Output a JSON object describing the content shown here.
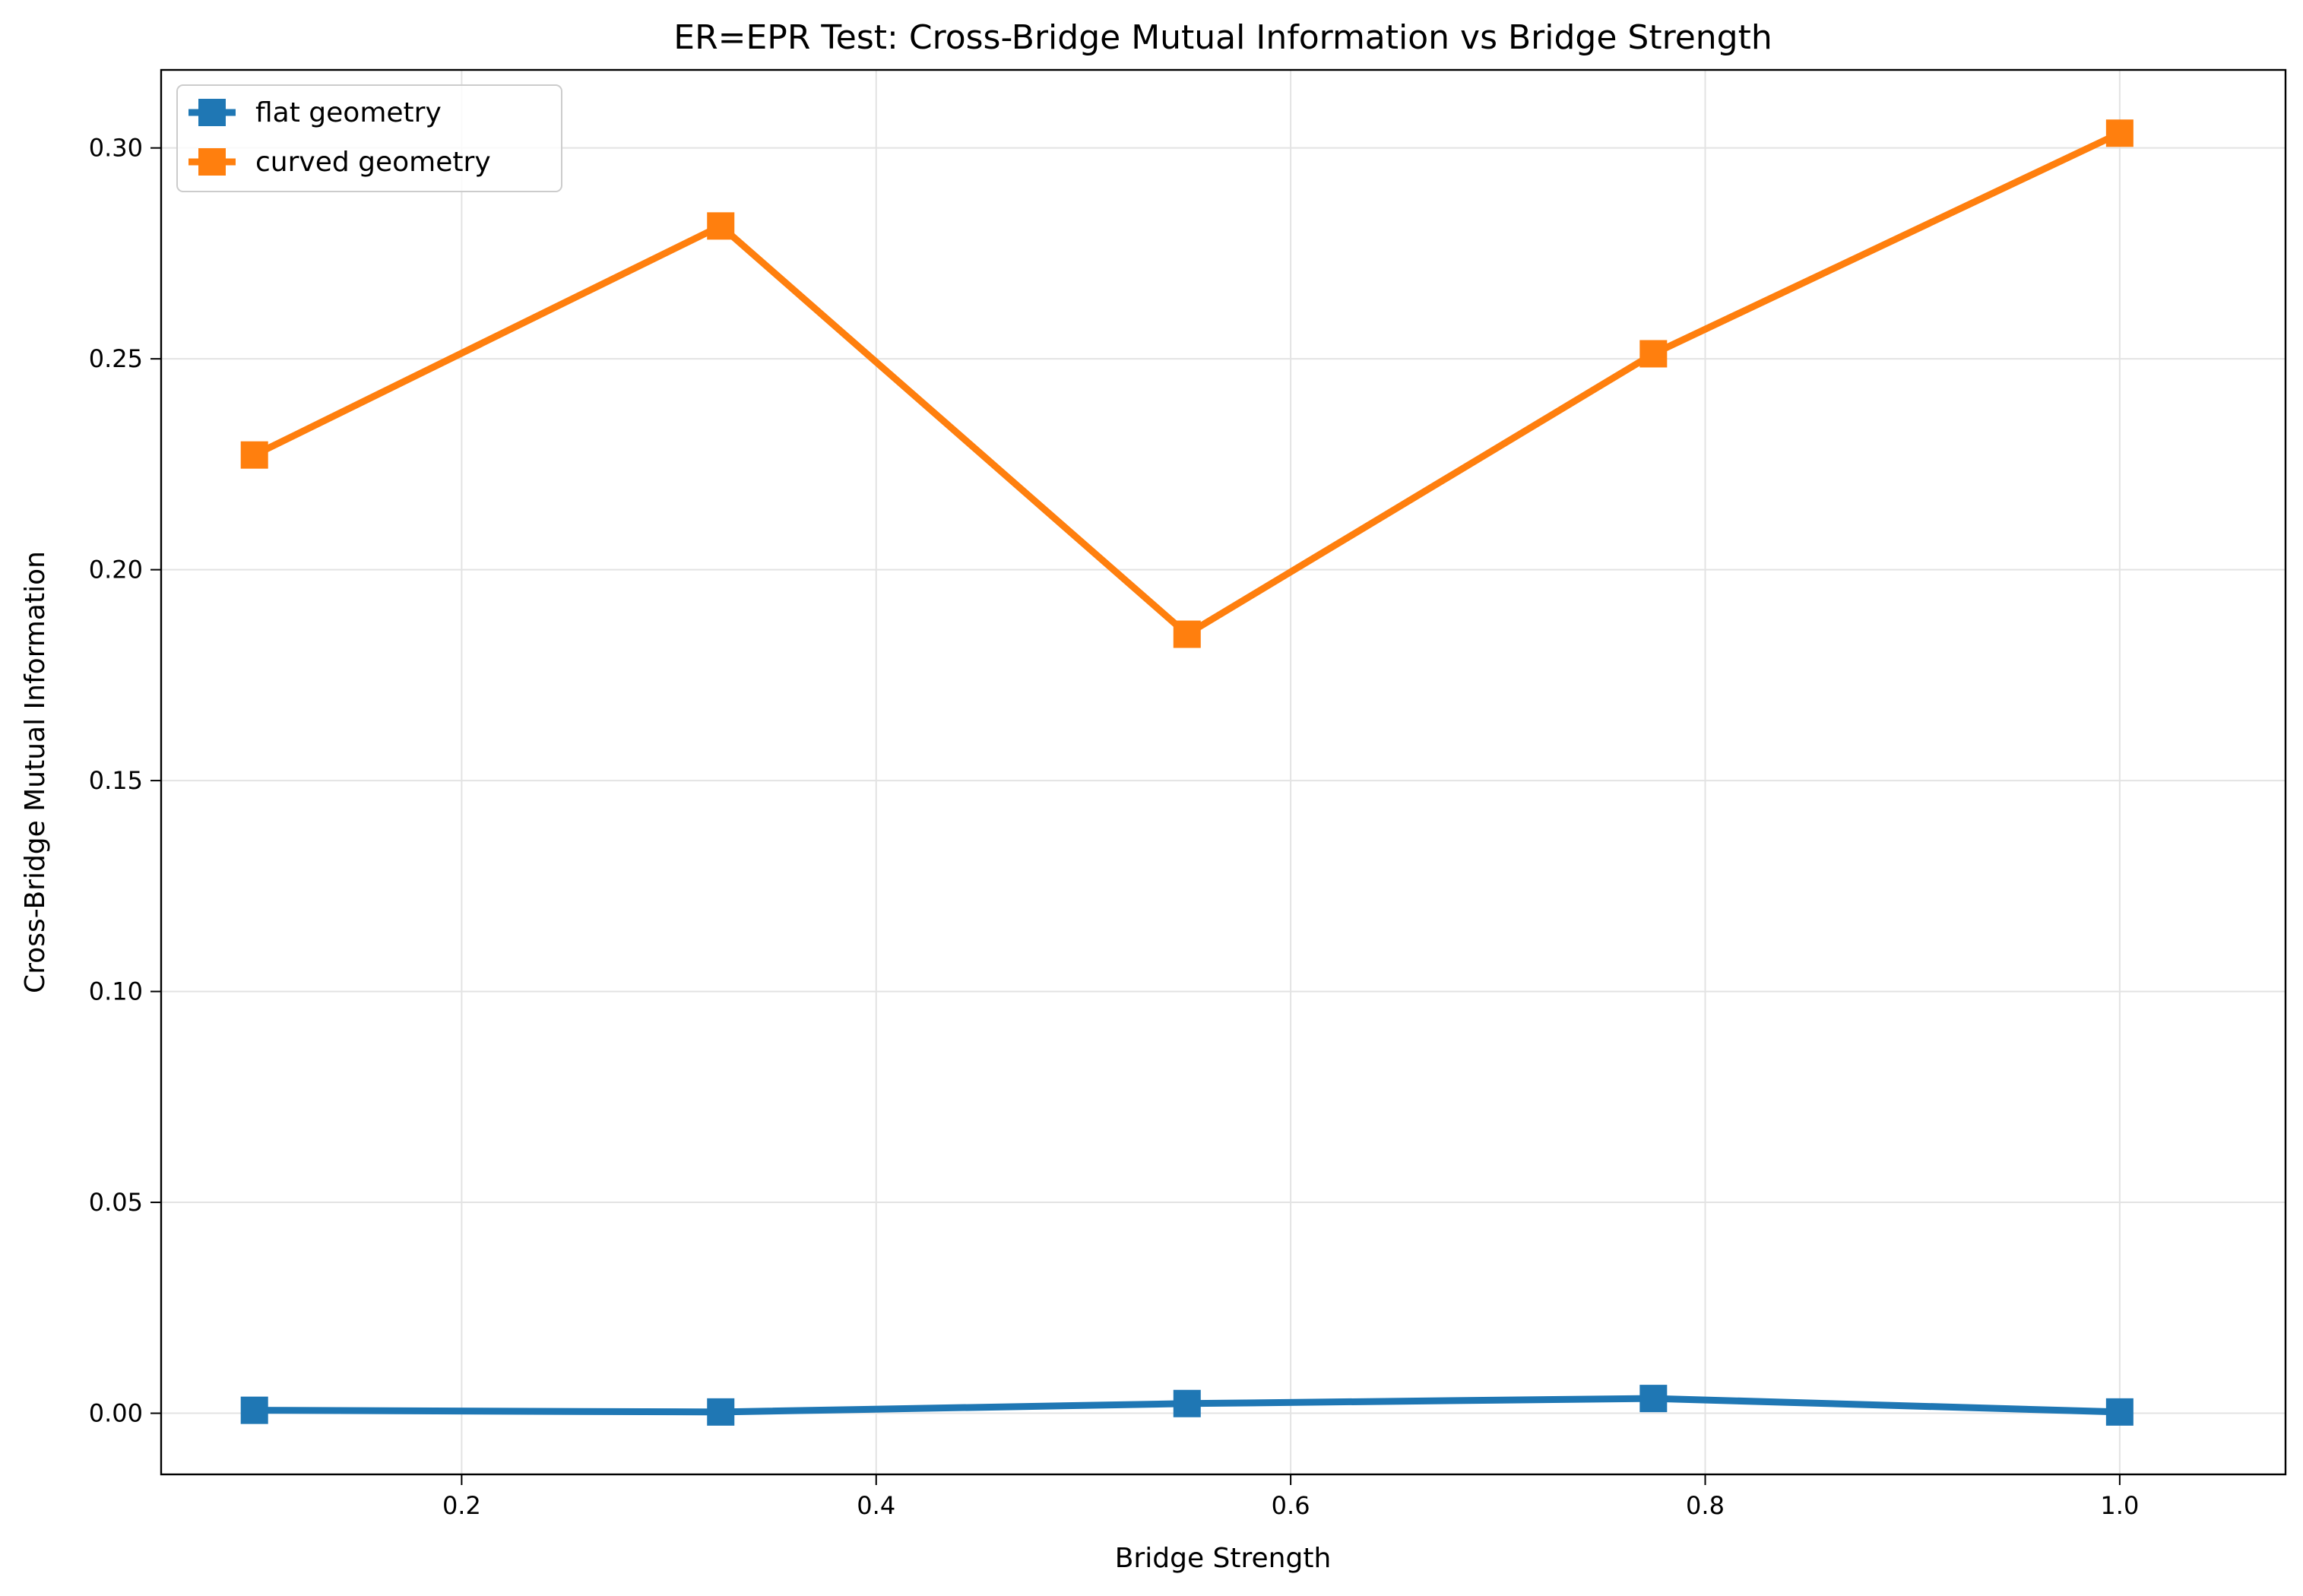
{
  "chart_data": {
    "type": "line",
    "title": "ER=EPR Test: Cross-Bridge Mutual Information vs Bridge Strength",
    "xlabel": "Bridge Strength",
    "ylabel": "Cross-Bridge Mutual Information",
    "xlim": [
      0.055,
      1.08
    ],
    "ylim": [
      -0.0145,
      0.3185
    ],
    "xticks": [
      0.2,
      0.4,
      0.6,
      0.8,
      1.0
    ],
    "xtick_labels": [
      "0.2",
      "0.4",
      "0.6",
      "0.8",
      "1.0"
    ],
    "yticks": [
      0.0,
      0.05,
      0.1,
      0.15,
      0.2,
      0.25,
      0.3
    ],
    "ytick_labels": [
      "0.00",
      "0.05",
      "0.10",
      "0.15",
      "0.20",
      "0.25",
      "0.30"
    ],
    "grid": true,
    "legend_position": "top-left",
    "x": [
      0.1,
      0.325,
      0.55,
      0.775,
      1.0
    ],
    "series": [
      {
        "name": "flat geometry",
        "color": "#1f77b4",
        "marker": "square",
        "values": [
          0.0007,
          0.0003,
          0.0023,
          0.0035,
          0.0003
        ]
      },
      {
        "name": "curved geometry",
        "color": "#ff7f0e",
        "marker": "square",
        "values": [
          0.2272,
          0.2815,
          0.1847,
          0.2512,
          0.3035
        ]
      }
    ]
  }
}
